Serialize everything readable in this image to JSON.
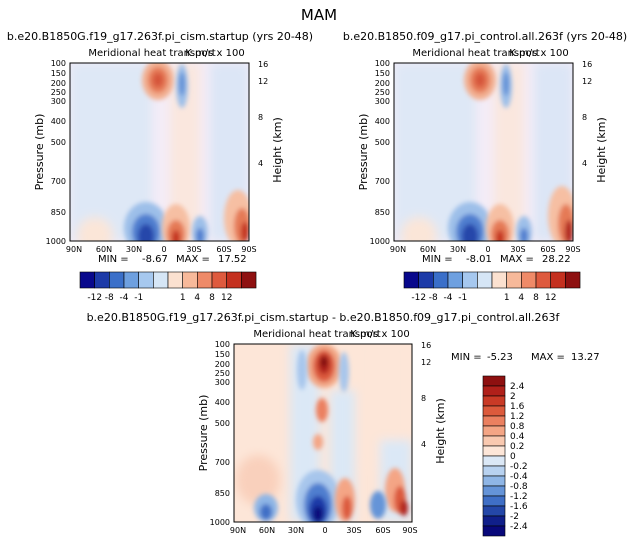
{
  "figure_title": "MAM",
  "chart_data": [
    {
      "type": "heatmap",
      "panel_id": "p1",
      "case_title": "b.e20.B1850G.f19_g17.263f.pi_cism.startup (yrs 20-48)",
      "subtitle": "Meridional heat transport",
      "units": "K m/s x 100",
      "ylabel": "Pressure (mb)",
      "ylabel_right": "Height (km)",
      "x_ticks": [
        "90N",
        "60N",
        "30N",
        "0",
        "30S",
        "60S",
        "90S"
      ],
      "y_ticks": [
        "100",
        "150",
        "200",
        "250",
        "300",
        "400",
        "500",
        "700",
        "850",
        "1000"
      ],
      "height_ticks": [
        "4",
        "8",
        "12",
        "16"
      ],
      "stats": {
        "min_label": "MIN =",
        "min": "-8.67",
        "max_label": "MAX =",
        "max": "17.52"
      },
      "colorbar": {
        "orientation": "horizontal",
        "labels": [
          "-12",
          "-8",
          "-4",
          "-1",
          "1",
          "4",
          "8",
          "12"
        ],
        "colors": [
          "#08088c",
          "#1c3aa8",
          "#3a6fc9",
          "#6ea0e0",
          "#a6c8ef",
          "#d6e6f6",
          "#fbe1d0",
          "#f7b99a",
          "#ef8a68",
          "#de5a3e",
          "#c4301f",
          "#8e1010"
        ]
      },
      "features": [
        {
          "name": "upper-warm-max",
          "lat": 5,
          "p": 200,
          "sign": "positive"
        },
        {
          "name": "upper-cold-band",
          "lat": -5,
          "p": 250,
          "sign": "negative"
        },
        {
          "name": "surface-cold-nh",
          "lat": 10,
          "p": 950,
          "sign": "negative"
        },
        {
          "name": "surface-warm-sh",
          "lat": -10,
          "p": 950,
          "sign": "positive"
        },
        {
          "name": "surface-warm-60s",
          "lat": -75,
          "p": 900,
          "sign": "positive"
        }
      ]
    },
    {
      "type": "heatmap",
      "panel_id": "p2",
      "case_title": "b.e20.B1850.f09_g17.pi_control.all.263f (yrs 20-48)",
      "subtitle": "Meridional heat transport",
      "units": "K m/s x 100",
      "ylabel": "Pressure (mb)",
      "ylabel_right": "Height (km)",
      "x_ticks": [
        "90N",
        "60N",
        "30N",
        "0",
        "30S",
        "60S",
        "90S"
      ],
      "y_ticks": [
        "100",
        "150",
        "200",
        "250",
        "300",
        "400",
        "500",
        "700",
        "850",
        "1000"
      ],
      "height_ticks": [
        "4",
        "8",
        "12",
        "16"
      ],
      "stats": {
        "min_label": "MIN =",
        "min": "-8.01",
        "max_label": "MAX =",
        "max": "28.22"
      },
      "colorbar": {
        "orientation": "horizontal",
        "labels": [
          "-12",
          "-8",
          "-4",
          "-1",
          "1",
          "4",
          "8",
          "12"
        ],
        "colors": [
          "#08088c",
          "#1c3aa8",
          "#3a6fc9",
          "#6ea0e0",
          "#a6c8ef",
          "#d6e6f6",
          "#fbe1d0",
          "#f7b99a",
          "#ef8a68",
          "#de5a3e",
          "#c4301f",
          "#8e1010"
        ]
      },
      "features": [
        {
          "name": "upper-warm-max",
          "lat": 5,
          "p": 200,
          "sign": "positive"
        },
        {
          "name": "upper-cold-band",
          "lat": -5,
          "p": 250,
          "sign": "negative"
        },
        {
          "name": "surface-cold-nh",
          "lat": 10,
          "p": 950,
          "sign": "negative"
        },
        {
          "name": "surface-warm-sh",
          "lat": -10,
          "p": 950,
          "sign": "positive"
        },
        {
          "name": "surface-warm-60s",
          "lat": -75,
          "p": 900,
          "sign": "positive"
        }
      ]
    },
    {
      "type": "heatmap",
      "panel_id": "p3",
      "case_title": "b.e20.B1850G.f19_g17.263f.pi_cism.startup - b.e20.B1850.f09_g17.pi_control.all.263f",
      "subtitle": "Meridional heat transport",
      "units": "K m/s x 100",
      "ylabel": "Pressure (mb)",
      "ylabel_right": "Height (km)",
      "x_ticks": [
        "90N",
        "60N",
        "30N",
        "0",
        "30S",
        "60S",
        "90S"
      ],
      "y_ticks": [
        "100",
        "150",
        "200",
        "250",
        "300",
        "400",
        "500",
        "700",
        "850",
        "1000"
      ],
      "height_ticks": [
        "4",
        "8",
        "12",
        "16"
      ],
      "stats": {
        "min_label": "MIN =",
        "min": "-5.23",
        "max_label": "MAX =",
        "max": "13.27"
      },
      "colorbar": {
        "orientation": "vertical",
        "labels": [
          "2.4",
          "2",
          "1.6",
          "1.2",
          "0.8",
          "0.4",
          "0.2",
          "0",
          "-0.2",
          "-0.4",
          "-0.8",
          "-1.2",
          "-1.6",
          "-2",
          "-2.4"
        ],
        "colors": [
          "#8e1010",
          "#b0201a",
          "#c93a26",
          "#dc5a3c",
          "#eb8060",
          "#f4a585",
          "#f9c9b0",
          "#fde6d8",
          "#dbe8f6",
          "#b8d2f0",
          "#8fb6e6",
          "#6594d8",
          "#3f6fc6",
          "#2447a8",
          "#101f8a",
          "#08087a"
        ]
      },
      "features": [
        {
          "name": "upper-warm-max",
          "lat": 2,
          "p": 210,
          "sign": "positive"
        },
        {
          "name": "mid-warm",
          "lat": 2,
          "p": 420,
          "sign": "positive"
        },
        {
          "name": "surface-cold-eq",
          "lat": 0,
          "p": 950,
          "sign": "negative"
        },
        {
          "name": "surface-warm-60s",
          "lat": -70,
          "p": 950,
          "sign": "positive"
        }
      ]
    }
  ]
}
